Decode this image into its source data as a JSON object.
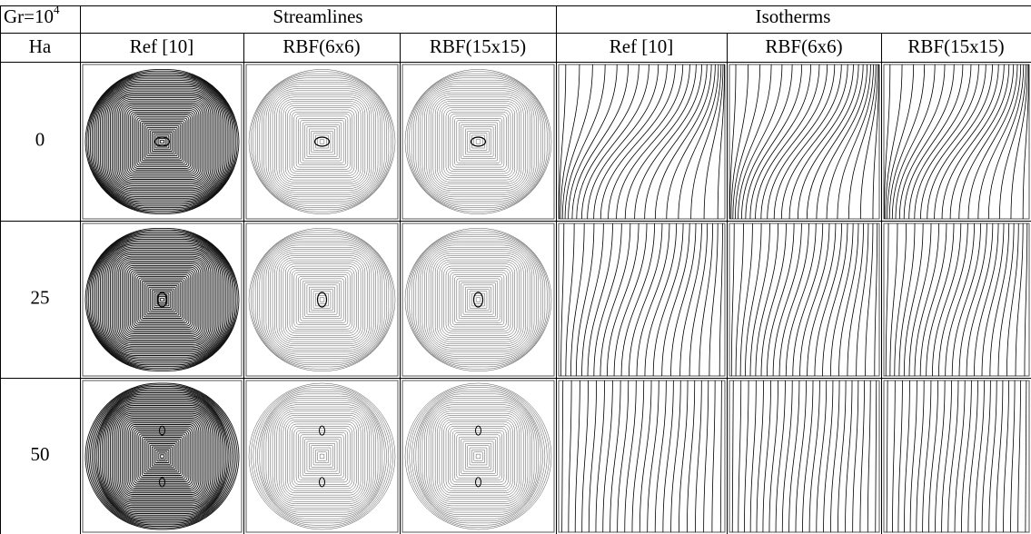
{
  "header": {
    "corner": {
      "text": "Gr=10",
      "sup": "4"
    },
    "groups": [
      "Streamlines",
      "Isotherms"
    ],
    "columns": [
      "Ha",
      "Ref [10]",
      "RBF(6x6)",
      "RBF(15x15)",
      "Ref [10]",
      "RBF(6x6)",
      "RBF(15x15)"
    ]
  },
  "rows": [
    {
      "ha": "0"
    },
    {
      "ha": "25"
    },
    {
      "ha": "50"
    }
  ]
}
